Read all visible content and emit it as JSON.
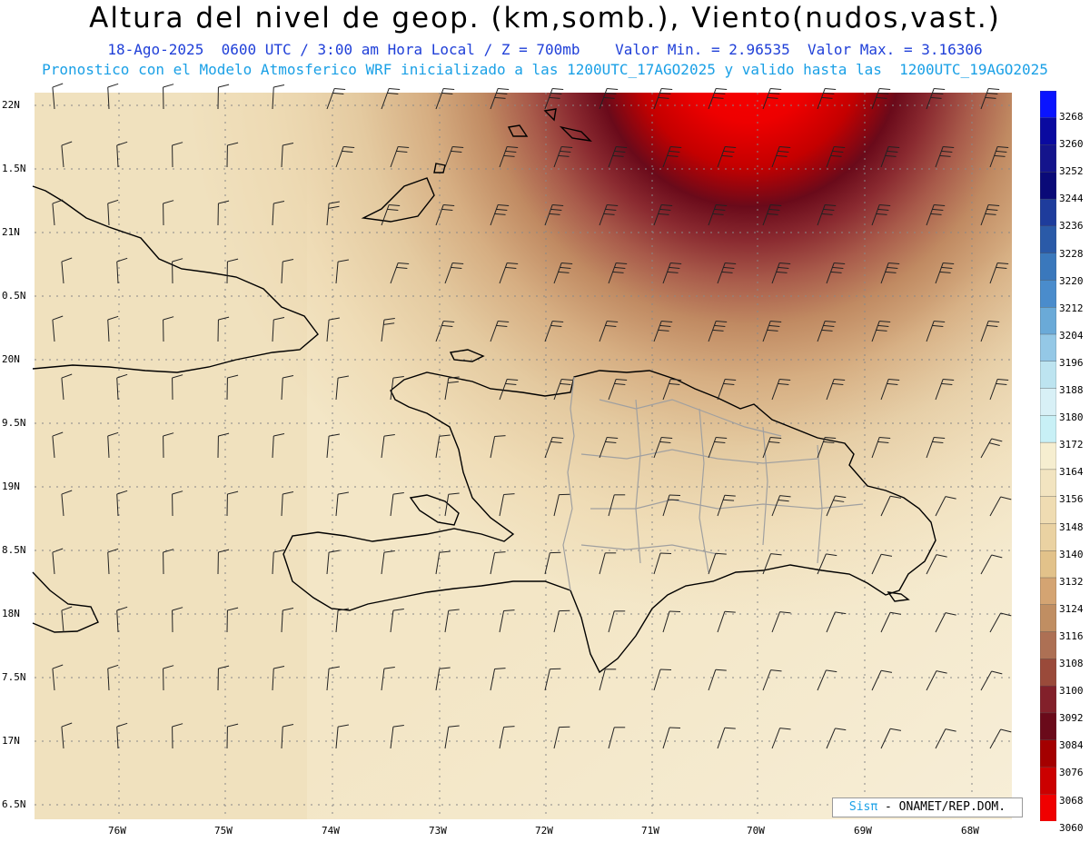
{
  "title": "Altura del nivel de geop. (km,somb.), Viento(nudos,vast.)",
  "subtitle1": "18-Ago-2025  0600 UTC / 3:00 am Hora Local / Z = 700mb    Valor Min. = 2.96535  Valor Max. = 3.16306",
  "subtitle2": "Pronostico con el Modelo Atmosferico WRF inicializado a las 1200UTC_17AGO2025 y valido hasta las  1200UTC_19AGO2025",
  "lat_labels": [
    "22N",
    "1.5N",
    "21N",
    "0.5N",
    "20N",
    "9.5N",
    "19N",
    "8.5N",
    "18N",
    "7.5N",
    "17N",
    "6.5N"
  ],
  "lon_labels": [
    "76W",
    "75W",
    "74W",
    "73W",
    "72W",
    "71W",
    "70W",
    "69W",
    "68W"
  ],
  "colorbar": {
    "labels": [
      "3268",
      "3260",
      "3252",
      "3244",
      "3236",
      "3228",
      "3220",
      "3212",
      "3204",
      "3196",
      "3188",
      "3180",
      "3172",
      "3164",
      "3156",
      "3148",
      "3140",
      "3132",
      "3124",
      "3116",
      "3108",
      "3100",
      "3092",
      "3084",
      "3076",
      "3068",
      "3060"
    ],
    "colors": [
      "#0a14ff",
      "#0a0aa0",
      "#14148c",
      "#0a0a78",
      "#1e3c9c",
      "#2a5aa8",
      "#3a78bc",
      "#4a8ccc",
      "#6aaad8",
      "#94c8e6",
      "#bde4f0",
      "#d8f0f6",
      "#c8f0f6",
      "#f6eed0",
      "#f2e4c0",
      "#efdcb2",
      "#ead2a2",
      "#e2c28a",
      "#d4a472",
      "#c08e62",
      "#ad7054",
      "#9a4a3a",
      "#82202a",
      "#6a0a1a",
      "#a40000",
      "#cc0000",
      "#f00000"
    ]
  },
  "credit": {
    "brand": "Sisπ",
    "text": " - ONAMET/REP.DOM."
  }
}
